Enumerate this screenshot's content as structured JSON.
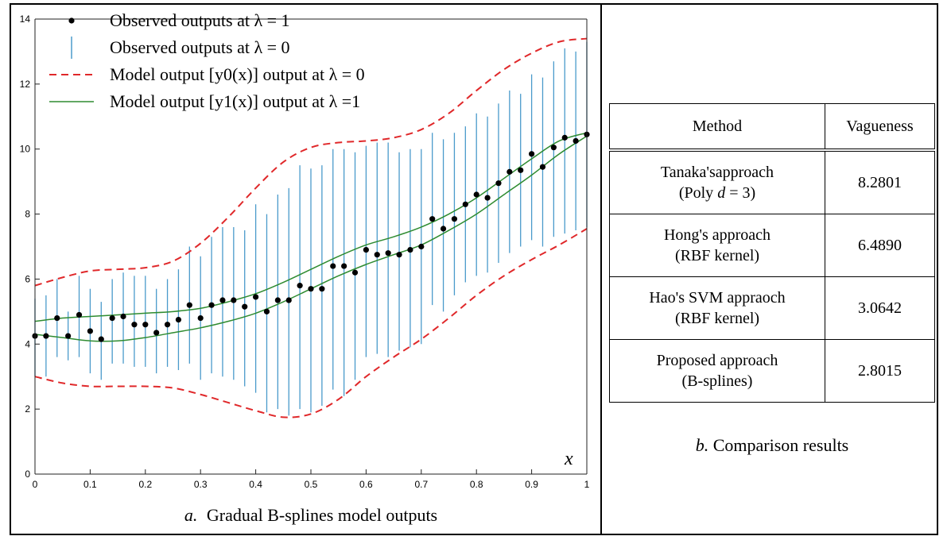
{
  "chart_data": {
    "type": "scatter",
    "title": "",
    "caption_prefix": "a.",
    "caption": "Gradual B-splines model outputs",
    "xlabel": "x",
    "ylabel": "",
    "xlim": [
      0,
      1
    ],
    "ylim": [
      0,
      14
    ],
    "xticks": [
      "0",
      "0.1",
      "0.2",
      "0.3",
      "0.4",
      "0.5",
      "0.6",
      "0.7",
      "0.8",
      "0.9",
      "1"
    ],
    "yticks": [
      "0",
      "2",
      "4",
      "6",
      "8",
      "10",
      "12",
      "14"
    ],
    "grid": false,
    "legend_position": "top-left",
    "legend": [
      {
        "text": "Observed outputs at λ = 1",
        "marker": "dot",
        "color": "#000000"
      },
      {
        "text": "Observed outputs at λ = 0",
        "marker": "vline",
        "color": "#4a9acb"
      },
      {
        "text": "Model output [y0(x)] output at λ = 0",
        "marker": "dashed",
        "color": "#e0282a"
      },
      {
        "text": "Model output [y1(x)] output at λ =1",
        "marker": "solid",
        "color": "#2e8b30"
      }
    ],
    "series": [
      {
        "name": "Observed outputs at λ = 1",
        "x": [
          0.0,
          0.02,
          0.04,
          0.06,
          0.08,
          0.1,
          0.12,
          0.14,
          0.16,
          0.18,
          0.2,
          0.22,
          0.24,
          0.26,
          0.28,
          0.3,
          0.32,
          0.34,
          0.36,
          0.38,
          0.4,
          0.42,
          0.44,
          0.46,
          0.48,
          0.5,
          0.52,
          0.54,
          0.56,
          0.58,
          0.6,
          0.62,
          0.64,
          0.66,
          0.68,
          0.7,
          0.72,
          0.74,
          0.76,
          0.78,
          0.8,
          0.82,
          0.84,
          0.86,
          0.88,
          0.9,
          0.92,
          0.94,
          0.96,
          0.98,
          1.0
        ],
        "y": [
          4.25,
          4.25,
          4.8,
          4.25,
          4.9,
          4.4,
          4.15,
          4.8,
          4.85,
          4.6,
          4.6,
          4.35,
          4.6,
          4.75,
          5.2,
          4.8,
          5.2,
          5.35,
          5.35,
          5.15,
          5.45,
          5.0,
          5.35,
          5.35,
          5.8,
          5.7,
          5.7,
          6.4,
          6.4,
          6.2,
          6.9,
          6.75,
          6.8,
          6.75,
          6.9,
          7.0,
          7.85,
          7.55,
          7.85,
          8.3,
          8.6,
          8.5,
          8.95,
          9.3,
          9.35,
          9.85,
          9.45,
          10.05,
          10.35,
          10.25,
          10.45
        ]
      },
      {
        "name": "Observed outputs at λ = 0",
        "x": [
          0.0,
          0.02,
          0.04,
          0.06,
          0.08,
          0.1,
          0.12,
          0.14,
          0.16,
          0.18,
          0.2,
          0.22,
          0.24,
          0.26,
          0.28,
          0.3,
          0.32,
          0.34,
          0.36,
          0.38,
          0.4,
          0.42,
          0.44,
          0.46,
          0.48,
          0.5,
          0.52,
          0.54,
          0.56,
          0.58,
          0.6,
          0.62,
          0.64,
          0.66,
          0.68,
          0.7,
          0.72,
          0.74,
          0.76,
          0.78,
          0.8,
          0.82,
          0.84,
          0.86,
          0.88,
          0.9,
          0.92,
          0.94,
          0.96,
          0.98,
          1.0
        ],
        "low": [
          3.0,
          3.0,
          3.6,
          3.5,
          3.6,
          3.1,
          2.9,
          3.4,
          3.4,
          3.3,
          3.3,
          3.1,
          3.3,
          3.2,
          3.4,
          2.9,
          3.1,
          3.0,
          2.9,
          2.7,
          2.5,
          1.9,
          2.0,
          1.8,
          2.0,
          1.9,
          2.1,
          2.6,
          2.4,
          2.9,
          3.6,
          3.7,
          3.6,
          3.8,
          3.9,
          4.0,
          5.2,
          5.0,
          5.5,
          5.9,
          6.1,
          6.2,
          6.5,
          6.8,
          7.0,
          7.2,
          7.0,
          7.3,
          7.4,
          7.5,
          7.6
        ],
        "high": [
          5.4,
          5.5,
          6.0,
          5.0,
          6.1,
          5.7,
          5.3,
          6.0,
          6.2,
          6.1,
          6.1,
          5.7,
          6.0,
          6.3,
          7.0,
          6.7,
          7.3,
          7.6,
          7.6,
          7.5,
          8.3,
          8.0,
          8.6,
          8.8,
          9.5,
          9.4,
          9.5,
          10.0,
          10.0,
          9.9,
          10.1,
          10.2,
          10.2,
          9.9,
          10.0,
          10.0,
          10.5,
          10.3,
          10.5,
          10.7,
          11.1,
          11.0,
          11.4,
          11.8,
          11.7,
          12.3,
          12.2,
          12.7,
          13.1,
          13.0,
          13.3
        ]
      },
      {
        "name": "Model output [y0(x)] output at λ = 0",
        "x": [
          0.0,
          0.05,
          0.1,
          0.15,
          0.2,
          0.25,
          0.3,
          0.35,
          0.4,
          0.45,
          0.5,
          0.55,
          0.6,
          0.65,
          0.7,
          0.75,
          0.8,
          0.85,
          0.9,
          0.95,
          1.0
        ],
        "upper": [
          5.8,
          6.05,
          6.25,
          6.3,
          6.35,
          6.55,
          7.1,
          7.9,
          8.8,
          9.6,
          10.05,
          10.2,
          10.25,
          10.35,
          10.6,
          11.1,
          11.8,
          12.45,
          12.95,
          13.3,
          13.4
        ],
        "lower": [
          3.0,
          2.8,
          2.7,
          2.7,
          2.7,
          2.65,
          2.45,
          2.2,
          1.95,
          1.75,
          1.85,
          2.3,
          3.0,
          3.6,
          4.15,
          4.8,
          5.5,
          6.1,
          6.6,
          7.05,
          7.55
        ]
      },
      {
        "name": "Model output [y1(x)] output at λ =1",
        "x": [
          0.0,
          0.05,
          0.1,
          0.15,
          0.2,
          0.25,
          0.3,
          0.35,
          0.4,
          0.45,
          0.5,
          0.55,
          0.6,
          0.65,
          0.7,
          0.75,
          0.8,
          0.85,
          0.9,
          0.95,
          1.0
        ],
        "upper": [
          4.7,
          4.8,
          4.85,
          4.9,
          4.95,
          5.0,
          5.1,
          5.3,
          5.55,
          5.9,
          6.3,
          6.7,
          7.05,
          7.3,
          7.6,
          8.0,
          8.5,
          9.1,
          9.7,
          10.25,
          10.5
        ],
        "lower": [
          4.3,
          4.2,
          4.1,
          4.1,
          4.2,
          4.35,
          4.5,
          4.7,
          4.95,
          5.3,
          5.7,
          6.1,
          6.45,
          6.75,
          7.05,
          7.5,
          8.0,
          8.6,
          9.2,
          9.85,
          10.4
        ]
      }
    ]
  },
  "table": {
    "caption_prefix": "b.",
    "caption": "Comparison results",
    "headers": {
      "method": "Method",
      "vagueness": "Vagueness"
    },
    "rows": [
      {
        "line1": "Tanaka'sapproach",
        "line2_prefix": "(Poly ",
        "line2_var": "d",
        "line2_suffix": " = 3)",
        "value": "8.2801"
      },
      {
        "line1": "Hong's approach",
        "line2": "(RBF kernel)",
        "value": "6.4890"
      },
      {
        "line1": "Hao's SVM appraoch",
        "line2": "(RBF kernel)",
        "value": "3.0642"
      },
      {
        "line1": "Proposed approach",
        "line2": "(B-splines)",
        "value": "2.8015"
      }
    ]
  }
}
